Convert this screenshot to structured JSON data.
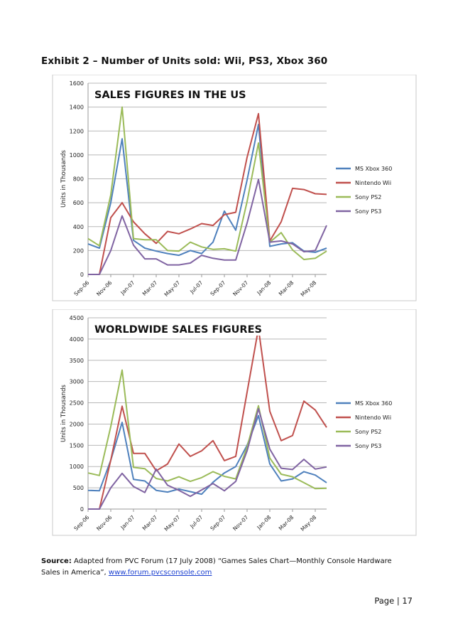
{
  "heading": "Exhibit 2 – Number of Units sold: Wii, PS3, Xbox 360",
  "source": {
    "label": "Source:",
    "text": "Adapted from PVC Forum (17 July 2008) “Games Sales Chart—Monthly Console Hardware Sales in America”, ",
    "link": "www.forum.pvcsconsole.com"
  },
  "footer": {
    "page": "Page | 17"
  },
  "chart_data": [
    {
      "type": "line",
      "title": "SALES FIGURES IN THE US",
      "ylabel": "Units in Thousands",
      "xlabel": "",
      "ylim": [
        0,
        1600
      ],
      "yticks": [
        0,
        200,
        400,
        600,
        800,
        1000,
        1200,
        1400,
        1600
      ],
      "x_tick_labels": [
        "Sep-06",
        "Nov-06",
        "Jan-07",
        "Mar-07",
        "May-07",
        "Jul-07",
        "Sep-07",
        "Nov-07",
        "Jan-08",
        "Mar-08",
        "May-08"
      ],
      "grid": true,
      "legend_position": "right",
      "series": [
        {
          "name": "MS Xbox 360",
          "color": "#4f81bd",
          "values": [
            255,
            220,
            600,
            1135,
            285,
            220,
            195,
            175,
            160,
            200,
            175,
            270,
            530,
            370,
            790,
            1255,
            235,
            255,
            265,
            195,
            185,
            220
          ]
        },
        {
          "name": "Nintendo  Wii",
          "color": "#c0504d",
          "values": [
            0,
            0,
            475,
            600,
            440,
            340,
            260,
            360,
            340,
            380,
            425,
            410,
            500,
            520,
            980,
            1345,
            280,
            440,
            720,
            710,
            675,
            670
          ]
        },
        {
          "name": "Sony PS2",
          "color": "#9bbb59",
          "values": [
            300,
            240,
            665,
            1400,
            300,
            290,
            290,
            200,
            195,
            270,
            230,
            210,
            215,
            195,
            610,
            1100,
            270,
            350,
            205,
            125,
            135,
            195
          ]
        },
        {
          "name": "Sony PS3",
          "color": "#8064a2",
          "values": [
            0,
            0,
            200,
            490,
            245,
            130,
            130,
            80,
            80,
            95,
            160,
            135,
            120,
            120,
            430,
            795,
            270,
            280,
            255,
            190,
            200,
            410
          ]
        }
      ]
    },
    {
      "type": "line",
      "title": "WORLDWIDE SALES FIGURES",
      "ylabel": "Units in Thousands",
      "xlabel": "",
      "ylim": [
        0,
        4500
      ],
      "yticks": [
        0,
        500,
        1000,
        1500,
        2000,
        2500,
        3000,
        3500,
        4000,
        4500
      ],
      "x_tick_labels": [
        "Sep-06",
        "Nov-06",
        "Jan-07",
        "Mar-07",
        "May-07",
        "Jul-07",
        "Sep-07",
        "Nov-07",
        "Jan-08",
        "Mar-08",
        "May-08"
      ],
      "grid": true,
      "legend_position": "right",
      "series": [
        {
          "name": "MS Xbox 360",
          "color": "#4f81bd",
          "values": [
            440,
            430,
            1150,
            2040,
            700,
            660,
            440,
            400,
            470,
            410,
            350,
            630,
            850,
            1000,
            1500,
            2200,
            1060,
            660,
            710,
            880,
            800,
            620
          ]
        },
        {
          "name": "Nintendo  Wii",
          "color": "#c0504d",
          "values": [
            0,
            0,
            1150,
            2420,
            1310,
            1310,
            900,
            1060,
            1530,
            1240,
            1370,
            1610,
            1140,
            1240,
            2750,
            4250,
            2300,
            1610,
            1730,
            2540,
            2330,
            1920
          ]
        },
        {
          "name": "Sony PS2",
          "color": "#9bbb59",
          "values": [
            850,
            790,
            1940,
            3270,
            980,
            950,
            720,
            660,
            760,
            650,
            740,
            880,
            770,
            710,
            1460,
            2430,
            1200,
            820,
            760,
            620,
            480,
            490
          ]
        },
        {
          "name": "Sony PS3",
          "color": "#8064a2",
          "values": [
            0,
            0,
            500,
            840,
            530,
            390,
            940,
            560,
            440,
            300,
            450,
            600,
            430,
            650,
            1370,
            2360,
            1410,
            960,
            930,
            1170,
            940,
            990
          ]
        }
      ]
    }
  ]
}
